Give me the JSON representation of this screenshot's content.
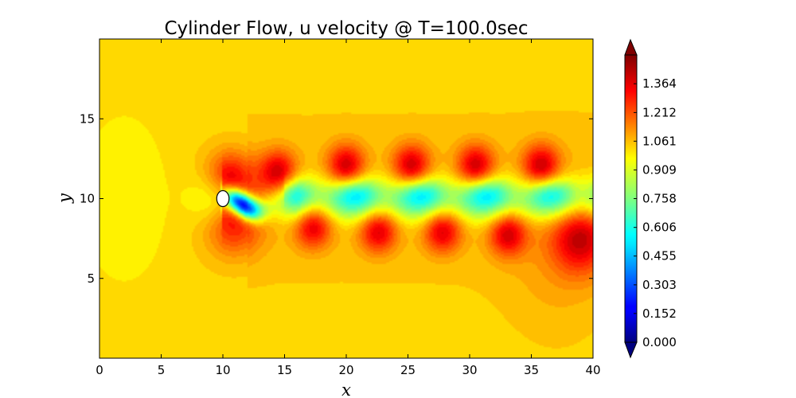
{
  "chart_data": {
    "type": "heatmap",
    "title": "Cylinder Flow, u velocity @ T=100.0sec",
    "xlabel": "x",
    "ylabel": "y",
    "xlim": [
      0,
      40
    ],
    "ylim": [
      0,
      20
    ],
    "x_ticks": [
      {
        "value": 0,
        "label": "0"
      },
      {
        "value": 5,
        "label": "5"
      },
      {
        "value": 10,
        "label": "10"
      },
      {
        "value": 15,
        "label": "15"
      },
      {
        "value": 20,
        "label": "20"
      },
      {
        "value": 25,
        "label": "25"
      },
      {
        "value": 30,
        "label": "30"
      },
      {
        "value": 35,
        "label": "35"
      },
      {
        "value": 40,
        "label": "40"
      }
    ],
    "y_ticks": [
      {
        "value": 5,
        "label": "5"
      },
      {
        "value": 10,
        "label": "10"
      },
      {
        "value": 15,
        "label": "15"
      }
    ],
    "grid": false,
    "colormap": "jet",
    "colorbar": {
      "range": [
        0.0,
        1.516
      ],
      "extend": "both",
      "ticks": [
        {
          "value": 0.0,
          "label": "0.000"
        },
        {
          "value": 0.152,
          "label": "0.152"
        },
        {
          "value": 0.303,
          "label": "0.303"
        },
        {
          "value": 0.455,
          "label": "0.455"
        },
        {
          "value": 0.606,
          "label": "0.606"
        },
        {
          "value": 0.758,
          "label": "0.758"
        },
        {
          "value": 0.909,
          "label": "0.909"
        },
        {
          "value": 1.061,
          "label": "1.061"
        },
        {
          "value": 1.212,
          "label": "1.212"
        },
        {
          "value": 1.364,
          "label": "1.364"
        }
      ]
    },
    "cylinder": {
      "center": [
        10,
        10
      ],
      "radius": 0.5
    },
    "free_stream_u": 1.0,
    "wake": {
      "upper_vortex_centers": [
        [
          10.5,
          11.3
        ],
        [
          14.5,
          11.6
        ],
        [
          20,
          12
        ],
        [
          25.3,
          12
        ],
        [
          30.5,
          12
        ],
        [
          35.8,
          12
        ]
      ],
      "lower_vortex_centers": [
        [
          11.2,
          8.6
        ],
        [
          17.3,
          8.3
        ],
        [
          22.6,
          8
        ],
        [
          27.8,
          8
        ],
        [
          33.1,
          7.8
        ],
        [
          39,
          7.5
        ]
      ],
      "upper_vortex_u": 1.38,
      "lower_vortex_u": 1.35,
      "wake_core_u": 0.62,
      "near_wake_u": 0.0
    }
  }
}
